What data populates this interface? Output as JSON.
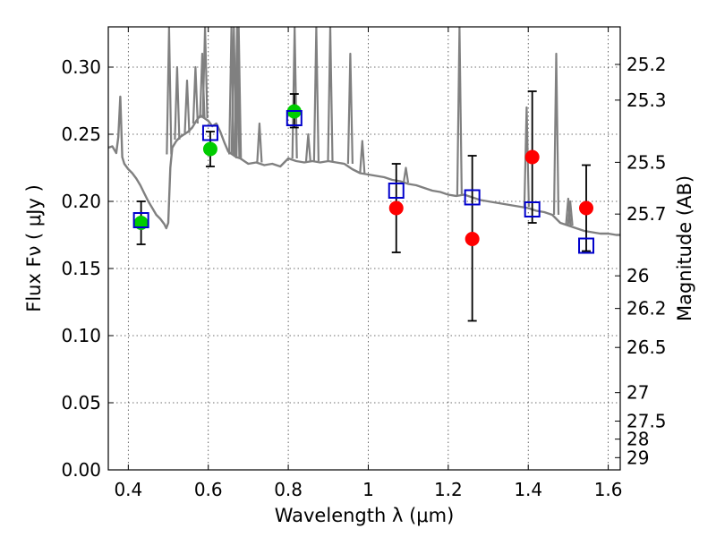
{
  "chart_data": {
    "type": "scatter",
    "xlabel": "Wavelength  λ (μm)",
    "ylabel": "Flux  Fν  ( μJy )",
    "y2label": "Magnitude (AB)",
    "xlim": [
      0.35,
      1.63
    ],
    "ylim": [
      0.0,
      0.33
    ],
    "grid": true,
    "x_ticks": [
      0.4,
      0.6,
      0.8,
      1.0,
      1.2,
      1.4,
      1.6
    ],
    "x_tick_labels": [
      "0.4",
      "0.6",
      "0.8",
      "1",
      "1.2",
      "1.4",
      "1.6"
    ],
    "y_ticks": [
      0.0,
      0.05,
      0.1,
      0.15,
      0.2,
      0.25,
      0.3
    ],
    "y_tick_labels": [
      "0.00",
      "0.05",
      "0.10",
      "0.15",
      "0.20",
      "0.25",
      "0.30"
    ],
    "y2_ticks": [
      25.2,
      25.3,
      25.5,
      25.7,
      26,
      26.2,
      26.5,
      27,
      27.5,
      28,
      29
    ],
    "y2_tick_labels": [
      "25.2",
      "25.3",
      "25.5",
      "25.7",
      "26",
      "26.2",
      "26.5",
      "27",
      "27.5",
      "28",
      "29"
    ],
    "series": [
      {
        "kind": "line",
        "color": "#808080",
        "points": [
          [
            0.35,
            0.24
          ],
          [
            0.36,
            0.241
          ],
          [
            0.37,
            0.236
          ],
          [
            0.375,
            0.248
          ],
          [
            0.38,
            0.278
          ],
          [
            0.385,
            0.233
          ],
          [
            0.39,
            0.228
          ],
          [
            0.4,
            0.224
          ],
          [
            0.41,
            0.221
          ],
          [
            0.42,
            0.217
          ],
          [
            0.43,
            0.212
          ],
          [
            0.44,
            0.206
          ],
          [
            0.45,
            0.2
          ],
          [
            0.46,
            0.195
          ],
          [
            0.47,
            0.19
          ],
          [
            0.48,
            0.187
          ],
          [
            0.49,
            0.183
          ],
          [
            0.495,
            0.18
          ],
          [
            0.5,
            0.184
          ],
          [
            0.505,
            0.225
          ],
          [
            0.51,
            0.24
          ],
          [
            0.52,
            0.245
          ],
          [
            0.53,
            0.248
          ],
          [
            0.54,
            0.25
          ],
          [
            0.55,
            0.252
          ],
          [
            0.56,
            0.255
          ],
          [
            0.57,
            0.26
          ],
          [
            0.58,
            0.264
          ],
          [
            0.59,
            0.262
          ],
          [
            0.6,
            0.26
          ],
          [
            0.61,
            0.256
          ],
          [
            0.62,
            0.258
          ],
          [
            0.63,
            0.252
          ],
          [
            0.64,
            0.244
          ],
          [
            0.65,
            0.237
          ],
          [
            0.66,
            0.235
          ],
          [
            0.67,
            0.233
          ],
          [
            0.68,
            0.232
          ],
          [
            0.69,
            0.23
          ],
          [
            0.7,
            0.228
          ],
          [
            0.72,
            0.229
          ],
          [
            0.74,
            0.227
          ],
          [
            0.76,
            0.228
          ],
          [
            0.78,
            0.226
          ],
          [
            0.8,
            0.232
          ],
          [
            0.82,
            0.23
          ],
          [
            0.84,
            0.229
          ],
          [
            0.86,
            0.23
          ],
          [
            0.88,
            0.229
          ],
          [
            0.9,
            0.23
          ],
          [
            0.92,
            0.229
          ],
          [
            0.94,
            0.228
          ],
          [
            0.96,
            0.224
          ],
          [
            0.98,
            0.221
          ],
          [
            1.0,
            0.22
          ],
          [
            1.02,
            0.219
          ],
          [
            1.04,
            0.218
          ],
          [
            1.06,
            0.216
          ],
          [
            1.08,
            0.215
          ],
          [
            1.1,
            0.213
          ],
          [
            1.12,
            0.212
          ],
          [
            1.14,
            0.21
          ],
          [
            1.16,
            0.208
          ],
          [
            1.18,
            0.207
          ],
          [
            1.2,
            0.205
          ],
          [
            1.22,
            0.204
          ],
          [
            1.24,
            0.205
          ],
          [
            1.26,
            0.203
          ],
          [
            1.28,
            0.201
          ],
          [
            1.3,
            0.2
          ],
          [
            1.32,
            0.199
          ],
          [
            1.34,
            0.198
          ],
          [
            1.36,
            0.197
          ],
          [
            1.38,
            0.196
          ],
          [
            1.4,
            0.195
          ],
          [
            1.42,
            0.193
          ],
          [
            1.44,
            0.192
          ],
          [
            1.46,
            0.19
          ],
          [
            1.48,
            0.184
          ],
          [
            1.5,
            0.182
          ],
          [
            1.52,
            0.18
          ],
          [
            1.54,
            0.178
          ],
          [
            1.56,
            0.177
          ],
          [
            1.58,
            0.176
          ],
          [
            1.6,
            0.176
          ],
          [
            1.62,
            0.175
          ],
          [
            1.63,
            0.175
          ]
        ],
        "spikes": [
          [
            0.502,
            0.235,
            0.33
          ],
          [
            0.522,
            0.246,
            0.3
          ],
          [
            0.547,
            0.251,
            0.29
          ],
          [
            0.568,
            0.258,
            0.3
          ],
          [
            0.585,
            0.262,
            0.31
          ],
          [
            0.592,
            0.262,
            0.33
          ],
          [
            0.658,
            0.235,
            0.33
          ],
          [
            0.664,
            0.235,
            0.33
          ],
          [
            0.672,
            0.233,
            0.33
          ],
          [
            0.676,
            0.232,
            0.33
          ],
          [
            0.728,
            0.229,
            0.258
          ],
          [
            0.816,
            0.232,
            0.33
          ],
          [
            0.85,
            0.229,
            0.25
          ],
          [
            0.87,
            0.23,
            0.33
          ],
          [
            0.905,
            0.23,
            0.33
          ],
          [
            0.955,
            0.228,
            0.31
          ],
          [
            0.985,
            0.221,
            0.245
          ],
          [
            1.094,
            0.214,
            0.225
          ],
          [
            1.228,
            0.204,
            0.33
          ],
          [
            1.396,
            0.196,
            0.27
          ],
          [
            1.47,
            0.19,
            0.31
          ],
          [
            1.5,
            0.182,
            0.202
          ],
          [
            1.505,
            0.182,
            0.2
          ]
        ]
      },
      {
        "kind": "markers",
        "marker": "circle",
        "color": "#00cc00",
        "points": [
          [
            0.432,
            0.184
          ],
          [
            0.605,
            0.239
          ],
          [
            0.815,
            0.267
          ]
        ],
        "yerr": [
          [
            0.432,
            0.168,
            0.2
          ],
          [
            0.605,
            0.226,
            0.252
          ],
          [
            0.815,
            0.255,
            0.28
          ]
        ]
      },
      {
        "kind": "markers",
        "marker": "circle",
        "color": "#ff0000",
        "points": [
          [
            1.07,
            0.195
          ],
          [
            1.26,
            0.172
          ],
          [
            1.41,
            0.233
          ],
          [
            1.545,
            0.195
          ]
        ],
        "yerr": [
          [
            1.07,
            0.162,
            0.228
          ],
          [
            1.26,
            0.111,
            0.234
          ],
          [
            1.41,
            0.184,
            0.282
          ],
          [
            1.545,
            0.163,
            0.227
          ]
        ]
      },
      {
        "kind": "markers",
        "marker": "open-square",
        "color": "#0000cc",
        "points": [
          [
            0.432,
            0.186
          ],
          [
            0.605,
            0.251
          ],
          [
            0.815,
            0.262
          ],
          [
            1.07,
            0.208
          ],
          [
            1.26,
            0.203
          ],
          [
            1.41,
            0.194
          ],
          [
            1.545,
            0.167
          ]
        ]
      }
    ]
  }
}
